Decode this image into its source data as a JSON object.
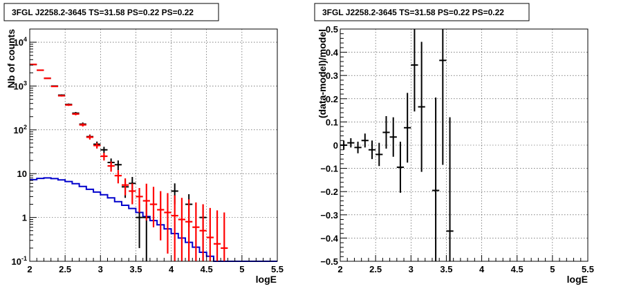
{
  "chart_data": [
    {
      "type": "step+errorbar",
      "title": "3FGL J2258.2-3645 TS=31.58 PS=0.22 PS=0.22",
      "xlabel": "logE",
      "ylabel": "Nb of counts",
      "xlim": [
        2,
        5.5
      ],
      "ylim": [
        0.1,
        20000
      ],
      "yscale": "log",
      "grid": true,
      "x_ticks": [
        "2",
        "2.5",
        "3",
        "3.5",
        "4",
        "4.5",
        "5",
        "5.5"
      ],
      "y_ticks": [
        {
          "value": 0.1,
          "label": "10",
          "exp": "-1"
        },
        {
          "value": 1,
          "label": "1",
          "exp": ""
        },
        {
          "value": 10,
          "label": "10",
          "exp": ""
        },
        {
          "value": 100,
          "label": "10",
          "exp": "2"
        },
        {
          "value": 1000,
          "label": "10",
          "exp": "3"
        },
        {
          "value": 10000,
          "label": "10",
          "exp": "4"
        }
      ],
      "series": [
        {
          "color": "#000000",
          "kind": "errorbar",
          "points": [
            {
              "x": 2.05,
              "y": 3100,
              "yerr_low": 60,
              "yerr_high": 60
            },
            {
              "x": 2.15,
              "y": 2300,
              "yerr_low": 50,
              "yerr_high": 50
            },
            {
              "x": 2.25,
              "y": 1500,
              "yerr_low": 40,
              "yerr_high": 40
            },
            {
              "x": 2.35,
              "y": 1000,
              "yerr_low": 32,
              "yerr_high": 32
            },
            {
              "x": 2.45,
              "y": 620,
              "yerr_low": 25,
              "yerr_high": 25
            },
            {
              "x": 2.55,
              "y": 380,
              "yerr_low": 20,
              "yerr_high": 20
            },
            {
              "x": 2.65,
              "y": 240,
              "yerr_low": 16,
              "yerr_high": 16
            },
            {
              "x": 2.75,
              "y": 135,
              "yerr_low": 12,
              "yerr_high": 12
            },
            {
              "x": 2.85,
              "y": 70,
              "yerr_low": 8,
              "yerr_high": 8
            },
            {
              "x": 2.95,
              "y": 47,
              "yerr_low": 7,
              "yerr_high": 7
            },
            {
              "x": 3.05,
              "y": 35,
              "yerr_low": 6,
              "yerr_high": 6
            },
            {
              "x": 3.15,
              "y": 18,
              "yerr_low": 4.2,
              "yerr_high": 4.2
            },
            {
              "x": 3.25,
              "y": 16,
              "yerr_low": 4,
              "yerr_high": 4
            },
            {
              "x": 3.35,
              "y": 5,
              "yerr_low": 2.2,
              "yerr_high": 2.2
            },
            {
              "x": 3.45,
              "y": 6,
              "yerr_low": 2.4,
              "yerr_high": 2.4
            },
            {
              "x": 3.55,
              "y": 1,
              "yerr_low": 0.8,
              "yerr_high": 1
            },
            {
              "x": 3.65,
              "y": 1,
              "yerr_low": 0.9,
              "yerr_high": 1
            },
            {
              "x": 3.75,
              "y": 2,
              "yerr_low": 1.4,
              "yerr_high": 1.4
            },
            {
              "x": 4.05,
              "y": 4,
              "yerr_low": 2,
              "yerr_high": 2
            },
            {
              "x": 4.25,
              "y": 2,
              "yerr_low": 1.4,
              "yerr_high": 1.4
            },
            {
              "x": 4.45,
              "y": 1,
              "yerr_low": 0.9,
              "yerr_high": 1
            }
          ]
        },
        {
          "color": "#ff0000",
          "kind": "errorbar",
          "points": [
            {
              "x": 2.05,
              "y": 3100,
              "yerr_low": 60,
              "yerr_high": 60
            },
            {
              "x": 2.15,
              "y": 2300,
              "yerr_low": 50,
              "yerr_high": 50
            },
            {
              "x": 2.25,
              "y": 1500,
              "yerr_low": 40,
              "yerr_high": 40
            },
            {
              "x": 2.35,
              "y": 980,
              "yerr_low": 31,
              "yerr_high": 31
            },
            {
              "x": 2.45,
              "y": 600,
              "yerr_low": 24,
              "yerr_high": 24
            },
            {
              "x": 2.55,
              "y": 370,
              "yerr_low": 19,
              "yerr_high": 19
            },
            {
              "x": 2.65,
              "y": 230,
              "yerr_low": 15,
              "yerr_high": 15
            },
            {
              "x": 2.75,
              "y": 130,
              "yerr_low": 11,
              "yerr_high": 11
            },
            {
              "x": 2.85,
              "y": 68,
              "yerr_low": 8,
              "yerr_high": 8
            },
            {
              "x": 2.95,
              "y": 44,
              "yerr_low": 6.6,
              "yerr_high": 6.6
            },
            {
              "x": 3.05,
              "y": 25,
              "yerr_low": 5,
              "yerr_high": 5
            },
            {
              "x": 3.15,
              "y": 15,
              "yerr_low": 3.9,
              "yerr_high": 3.9
            },
            {
              "x": 3.25,
              "y": 9,
              "yerr_low": 3,
              "yerr_high": 3
            },
            {
              "x": 3.35,
              "y": 5.5,
              "yerr_low": 2.3,
              "yerr_high": 2.3
            },
            {
              "x": 3.45,
              "y": 4,
              "yerr_low": 2,
              "yerr_high": 2
            },
            {
              "x": 3.55,
              "y": 3,
              "yerr_low": 1.7,
              "yerr_high": 1.7
            },
            {
              "x": 3.65,
              "y": 2.4,
              "yerr_low": 1.55,
              "yerr_high": 3.5
            },
            {
              "x": 3.75,
              "y": 2,
              "yerr_low": 1.4,
              "yerr_high": 3
            },
            {
              "x": 3.85,
              "y": 1.5,
              "yerr_low": 1.2,
              "yerr_high": 2.5
            },
            {
              "x": 3.95,
              "y": 1.3,
              "yerr_low": 1.15,
              "yerr_high": 2.3
            },
            {
              "x": 4.05,
              "y": 1.1,
              "yerr_low": 1.0,
              "yerr_high": 2.1
            },
            {
              "x": 4.15,
              "y": 0.9,
              "yerr_low": 0.8,
              "yerr_high": 1.9
            },
            {
              "x": 4.25,
              "y": 0.8,
              "yerr_low": 0.7,
              "yerr_high": 1.8
            },
            {
              "x": 4.35,
              "y": 0.6,
              "yerr_low": 0.5,
              "yerr_high": 1.6
            },
            {
              "x": 4.45,
              "y": 0.5,
              "yerr_low": 0.4,
              "yerr_high": 1.5
            },
            {
              "x": 4.55,
              "y": 0.35,
              "yerr_low": 0.25,
              "yerr_high": 1.3
            },
            {
              "x": 4.65,
              "y": 0.25,
              "yerr_low": 0.15,
              "yerr_high": 1.2
            },
            {
              "x": 4.75,
              "y": 0.2,
              "yerr_low": 0.1,
              "yerr_high": 1.1
            }
          ]
        },
        {
          "color": "#0000cc",
          "kind": "step",
          "bin_width": 0.1,
          "x": [
            2.0,
            2.1,
            2.2,
            2.3,
            2.4,
            2.5,
            2.6,
            2.7,
            2.8,
            2.9,
            3.0,
            3.1,
            3.2,
            3.3,
            3.4,
            3.5,
            3.6,
            3.7,
            3.8,
            3.9,
            4.0,
            4.1,
            4.2,
            4.3,
            4.4,
            4.5,
            4.6,
            4.7,
            4.8,
            4.9,
            5.0,
            5.1,
            5.2,
            5.3,
            5.4
          ],
          "y": [
            7.3,
            7.8,
            8.0,
            7.7,
            7.2,
            6.6,
            5.9,
            5.1,
            4.4,
            3.8,
            3.3,
            2.8,
            2.3,
            1.9,
            1.6,
            1.3,
            1.05,
            0.85,
            0.68,
            0.55,
            0.43,
            0.34,
            0.27,
            0.21,
            0.16,
            0.13,
            0.1,
            0.1,
            0.1,
            0.1,
            0.1,
            0.1,
            0.1,
            0.1,
            0.1
          ]
        }
      ]
    },
    {
      "type": "errorbar",
      "title": "3FGL J2258.2-3645 TS=31.58 PS=0.22 PS=0.22",
      "xlabel": "logE",
      "ylabel": "(data-model)/model",
      "xlim": [
        2,
        5.5
      ],
      "ylim": [
        -0.5,
        0.5
      ],
      "grid": true,
      "x_ticks": [
        "2",
        "2.5",
        "3",
        "3.5",
        "4",
        "4.5",
        "5",
        "5.5"
      ],
      "y_ticks": [
        "−0.5",
        "−0.4",
        "−0.3",
        "−0.2",
        "−0.1",
        "0",
        "0.1",
        "0.2",
        "0.3",
        "0.4",
        "0.5"
      ],
      "series": [
        {
          "color": "#000000",
          "points": [
            {
              "x": 2.05,
              "y": 0.0,
              "yerr": 0.02
            },
            {
              "x": 2.15,
              "y": 0.01,
              "yerr": 0.02
            },
            {
              "x": 2.25,
              "y": -0.01,
              "yerr": 0.025
            },
            {
              "x": 2.35,
              "y": 0.02,
              "yerr": 0.03
            },
            {
              "x": 2.45,
              "y": -0.02,
              "yerr": 0.04
            },
            {
              "x": 2.55,
              "y": -0.04,
              "yerr": 0.05
            },
            {
              "x": 2.65,
              "y": 0.055,
              "yerr": 0.07
            },
            {
              "x": 2.75,
              "y": 0.035,
              "yerr": 0.085
            },
            {
              "x": 2.85,
              "y": -0.095,
              "yerr": 0.11
            },
            {
              "x": 2.95,
              "y": 0.075,
              "yerr": 0.15
            },
            {
              "x": 3.05,
              "y": 0.345,
              "yerr": 0.2
            },
            {
              "x": 3.15,
              "y": 0.165,
              "yerr": 0.28
            },
            {
              "x": 3.35,
              "y": -0.195,
              "yerr": 0.4
            },
            {
              "x": 3.45,
              "y": 0.365,
              "yerr": 0.45
            },
            {
              "x": 3.55,
              "y": -0.37,
              "yerr": 0.49
            }
          ]
        }
      ]
    }
  ]
}
